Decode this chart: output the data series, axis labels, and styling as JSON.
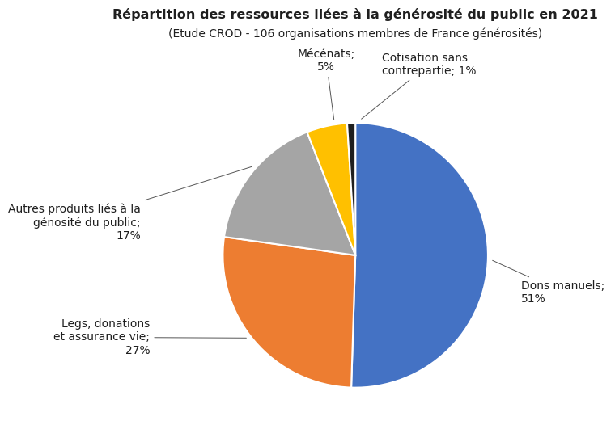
{
  "title_line1": "Répartition des ressources liées à la générosité du public en 2021",
  "title_line2": "(Etude CROD - 106 organisations membres de France générosités)",
  "slices": [
    {
      "label": "Dons manuels;\n51%",
      "value": 51,
      "color": "#4472C4"
    },
    {
      "label": "Legs, donations\net assurance vie;\n27%",
      "value": 27,
      "color": "#ED7D31"
    },
    {
      "label": "Autres produits liés à la\ngénosité du public;\n17%",
      "value": 17,
      "color": "#A5A5A5"
    },
    {
      "label": "Mécénats;\n5%",
      "value": 5,
      "color": "#FFC000"
    },
    {
      "label": "Cotisation sans\ncontrepartie; 1%",
      "value": 1,
      "color": "#1F1F1F"
    }
  ],
  "startangle": 90,
  "bg_color": "#FFFFFF",
  "title_fontsize": 11.5,
  "subtitle_fontsize": 10,
  "label_fontsize": 10
}
